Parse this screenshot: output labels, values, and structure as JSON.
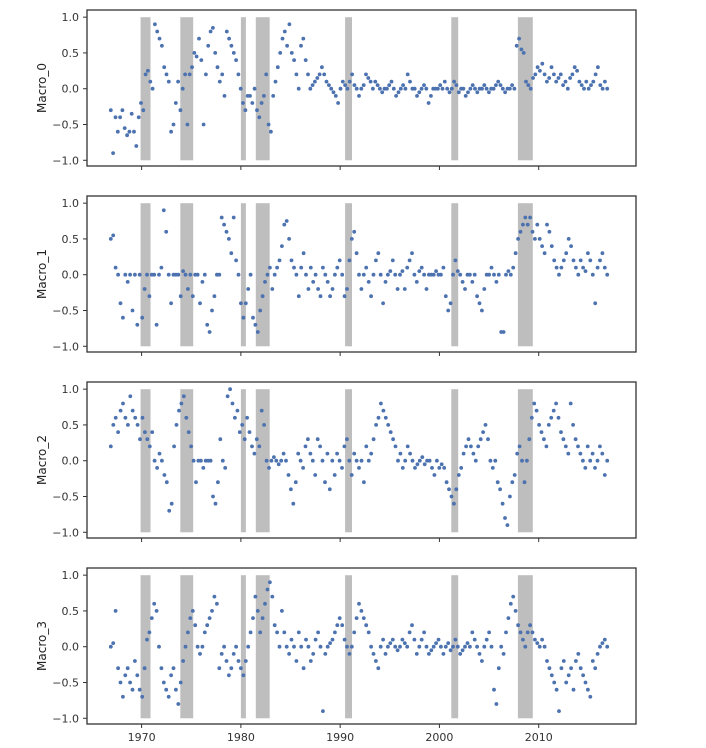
{
  "chart_data": {
    "type": "scatter",
    "x_ticks": [
      1970,
      1980,
      1990,
      2000,
      2010
    ],
    "y_ticks": [
      -1.0,
      -0.5,
      0.0,
      0.5,
      1.0
    ],
    "y_tick_labels": [
      "−1.0",
      "−0.5",
      "0.0",
      "0.5",
      "1.0"
    ],
    "xlim": [
      1964.5,
      2019.8
    ],
    "ylim": [
      -1.08,
      1.1
    ],
    "grid": false,
    "legend": "none",
    "colors": {
      "points": "#4c72b0",
      "recession": "#bebebe",
      "frame": "#333333"
    },
    "shaded_periods": [
      [
        1969.9,
        1970.9
      ],
      [
        1973.9,
        1975.2
      ],
      [
        1980.0,
        1980.5
      ],
      [
        1981.5,
        1982.9
      ],
      [
        1990.5,
        1991.2
      ],
      [
        2001.2,
        2001.9
      ],
      [
        2007.9,
        2009.4
      ]
    ],
    "panels": [
      {
        "ylabel": "Macro_0",
        "series": [
          {
            "values": [
              -0.3,
              -0.9,
              -0.4,
              -0.6,
              -0.4,
              -0.3,
              -0.55,
              -0.65,
              -0.6,
              -0.35,
              -0.6,
              -0.8,
              -0.4,
              -0.2,
              -0.3,
              0.2,
              0.25,
              0.1,
              0.0,
              0.9,
              0.8,
              0.7,
              0.6,
              0.3,
              0.2,
              0.1,
              -0.6,
              -0.5,
              -0.2,
              0.1,
              -0.3,
              0.0,
              0.2,
              -0.5,
              0.2,
              0.3,
              0.5,
              0.45,
              0.7,
              0.4,
              -0.5,
              0.2,
              0.6,
              0.8,
              0.85,
              0.5,
              0.3,
              0.1,
              0.2,
              -0.1,
              0.8,
              0.7,
              0.6,
              0.5,
              0.4,
              0.2,
              0.0,
              -0.2,
              -0.3,
              -0.1,
              -0.1,
              -0.2,
              0.0,
              -0.3,
              -0.4,
              -0.2,
              -0.1,
              0.2,
              -0.5,
              -0.6,
              -0.1,
              0.1,
              0.3,
              0.5,
              0.7,
              0.8,
              0.6,
              0.9,
              0.5,
              0.4,
              0.2,
              0.0,
              0.6,
              0.7,
              0.4,
              0.2,
              0.0,
              0.05,
              0.1,
              0.15,
              0.2,
              0.3,
              0.2,
              0.1,
              0.05,
              0.0,
              -0.05,
              -0.1,
              -0.2,
              0.0,
              0.1,
              0.05,
              0.0,
              0.1,
              0.2,
              0.05,
              0.0,
              -0.1,
              0.0,
              0.05,
              0.2,
              0.15,
              0.1,
              0.0,
              0.1,
              0.05,
              0.0,
              -0.05,
              0.0,
              0.0,
              0.05,
              0.1,
              0.0,
              -0.1,
              -0.05,
              0.0,
              0.05,
              0.0,
              0.2,
              0.1,
              0.0,
              0.0,
              -0.1,
              -0.05,
              0.0,
              0.05,
              0.0,
              -0.2,
              -0.1,
              0.0,
              0.0,
              0.0,
              0.05,
              0.0,
              0.1,
              0.0,
              -0.05,
              0.0,
              0.1,
              0.05,
              -0.05,
              0.0,
              0.0,
              -0.1,
              -0.05,
              0.0,
              0.05,
              0.0,
              -0.05,
              0.0,
              0.0,
              0.05,
              0.0,
              -0.05,
              0.0,
              0.0,
              0.05,
              0.1,
              0.05,
              0.0,
              -0.05,
              0.0,
              0.0,
              0.05,
              0.0,
              0.6,
              0.7,
              0.55,
              0.5,
              0.1,
              0.05,
              0.0,
              0.15,
              0.2,
              0.3,
              0.25,
              0.35,
              0.2,
              0.1,
              0.15,
              0.3,
              0.2,
              0.1,
              0.15,
              0.2,
              0.05,
              0.1,
              0.0,
              0.15,
              0.2,
              0.3,
              0.25,
              0.1,
              0.05,
              0.0,
              0.1,
              0.0,
              0.05,
              0.1,
              0.2,
              0.3,
              0.05,
              0.0,
              0.1,
              0.0
            ]
          }
        ]
      },
      {
        "ylabel": "Macro_1",
        "series": [
          {
            "values": [
              0.5,
              0.55,
              0.1,
              0.0,
              -0.4,
              -0.6,
              0.0,
              -0.1,
              0.0,
              -0.5,
              0.0,
              -0.7,
              0.0,
              -0.6,
              -0.2,
              0.0,
              -0.3,
              0.0,
              0.0,
              -0.7,
              0.0,
              0.1,
              0.9,
              0.6,
              0.0,
              -0.4,
              0.0,
              0.0,
              0.0,
              -0.3,
              0.05,
              0.0,
              -0.2,
              0.0,
              -0.3,
              0.0,
              0.0,
              -0.4,
              -0.1,
              0.0,
              -0.7,
              -0.8,
              -0.5,
              -0.3,
              0.0,
              0.0,
              0.8,
              0.7,
              0.6,
              0.5,
              0.3,
              0.8,
              0.2,
              0.0,
              -0.4,
              -0.6,
              -0.4,
              -0.2,
              0.0,
              -0.6,
              -0.7,
              -0.8,
              -0.5,
              -0.3,
              -0.1,
              0.0,
              0.1,
              -0.2,
              0.0,
              0.1,
              0.2,
              0.4,
              0.7,
              0.75,
              0.5,
              0.2,
              0.1,
              0.0,
              -0.3,
              0.1,
              0.3,
              0.0,
              -0.2,
              0.1,
              -0.1,
              0.0,
              -0.2,
              -0.3,
              0.1,
              0.0,
              -0.1,
              -0.3,
              -0.2,
              0.0,
              0.1,
              0.2,
              0.0,
              -0.3,
              -0.2,
              0.2,
              0.5,
              0.6,
              0.3,
              0.0,
              -0.2,
              0.0,
              0.1,
              -0.1,
              -0.3,
              0.0,
              0.2,
              0.3,
              0.0,
              -0.4,
              -0.1,
              0.0,
              0.05,
              0.2,
              0.0,
              -0.2,
              0.0,
              0.05,
              -0.2,
              0.1,
              0.2,
              0.3,
              0.0,
              -0.1,
              0.05,
              0.1,
              0.0,
              -0.2,
              0.0,
              0.0,
              0.0,
              0.05,
              0.0,
              0.0,
              0.1,
              -0.3,
              -0.5,
              -0.4,
              0.0,
              0.2,
              0.05,
              0.0,
              -0.1,
              -0.2,
              0.0,
              0.0,
              -0.1,
              0.0,
              -0.3,
              -0.4,
              -0.5,
              -0.2,
              0.0,
              0.0,
              0.1,
              0.0,
              -0.1,
              0.0,
              -0.8,
              -0.8,
              0.0,
              0.05,
              0.0,
              0.1,
              0.3,
              0.5,
              0.6,
              0.7,
              0.8,
              0.7,
              0.8,
              0.6,
              0.5,
              0.7,
              0.5,
              0.4,
              0.3,
              0.7,
              0.6,
              0.4,
              0.2,
              0.1,
              0.0,
              0.1,
              0.2,
              0.3,
              0.5,
              0.4,
              0.2,
              0.1,
              0.0,
              0.2,
              0.1,
              0.05,
              0.3,
              0.2,
              0.0,
              -0.4,
              0.1,
              0.2,
              0.3,
              0.1,
              0.0
            ]
          }
        ]
      },
      {
        "ylabel": "Macro_2",
        "series": [
          {
            "values": [
              0.2,
              0.5,
              0.6,
              0.4,
              0.7,
              0.8,
              0.6,
              0.5,
              0.9,
              0.7,
              0.6,
              0.5,
              0.3,
              0.6,
              0.4,
              0.3,
              0.2,
              0.4,
              0.0,
              -0.1,
              0.1,
              0.0,
              -0.2,
              -0.3,
              -0.7,
              -0.6,
              0.2,
              0.5,
              0.7,
              0.8,
              0.9,
              0.6,
              0.4,
              0.2,
              0.0,
              -0.3,
              0.0,
              0.0,
              -0.1,
              0.0,
              0.0,
              0.0,
              -0.5,
              -0.6,
              -0.3,
              0.3,
              0.0,
              -0.1,
              0.9,
              1.0,
              0.8,
              0.6,
              0.7,
              0.4,
              0.5,
              0.3,
              0.6,
              0.4,
              0.2,
              0.1,
              0.3,
              0.2,
              0.7,
              0.5,
              0.0,
              -0.1,
              0.0,
              0.05,
              0.0,
              -0.05,
              0.0,
              0.1,
              0.0,
              -0.2,
              -0.4,
              -0.6,
              -0.3,
              0.1,
              0.0,
              -0.1,
              0.2,
              0.3,
              0.1,
              0.0,
              -0.2,
              0.3,
              0.2,
              0.0,
              -0.3,
              0.1,
              -0.4,
              0.0,
              -0.2,
              0.1,
              0.0,
              -0.1,
              0.2,
              0.3,
              0.0,
              -0.2,
              0.1,
              0.0,
              -0.1,
              0.0,
              -0.3,
              0.2,
              0.0,
              0.1,
              0.3,
              0.5,
              0.6,
              0.8,
              0.7,
              0.6,
              0.5,
              0.4,
              0.3,
              0.2,
              0.0,
              0.1,
              -0.1,
              0.0,
              0.2,
              0.1,
              0.0,
              -0.1,
              -0.05,
              0.0,
              0.05,
              -0.05,
              0.0,
              0.0,
              -0.1,
              -0.2,
              0.0,
              -0.1,
              -0.05,
              -0.1,
              -0.3,
              -0.4,
              -0.5,
              -0.6,
              -0.4,
              -0.2,
              -0.1,
              0.1,
              0.2,
              0.3,
              0.2,
              0.1,
              0.0,
              0.2,
              0.3,
              0.4,
              0.5,
              0.3,
              0.0,
              -0.1,
              0.0,
              -0.3,
              -0.4,
              -0.6,
              -0.8,
              -0.9,
              -0.5,
              -0.3,
              -0.2,
              0.1,
              0.2,
              0.0,
              -0.3,
              0.0,
              0.3,
              0.6,
              0.8,
              0.7,
              0.5,
              0.4,
              0.3,
              0.2,
              0.5,
              0.6,
              0.7,
              0.8,
              0.6,
              0.4,
              0.3,
              0.2,
              0.1,
              0.8,
              0.5,
              0.3,
              0.2,
              0.1,
              0.0,
              -0.1,
              0.2,
              0.0,
              0.1,
              -0.1,
              0.0,
              0.2,
              0.1,
              -0.2,
              0.0
            ]
          }
        ]
      },
      {
        "ylabel": "Macro_3",
        "series": [
          {
            "values": [
              0.0,
              0.05,
              0.5,
              -0.3,
              -0.5,
              -0.7,
              -0.4,
              -0.3,
              -0.5,
              -0.6,
              -0.2,
              -0.4,
              -0.6,
              -0.7,
              -0.3,
              0.1,
              0.2,
              0.4,
              0.6,
              0.5,
              0.0,
              -0.3,
              -0.5,
              -0.6,
              -0.7,
              -0.4,
              -0.3,
              -0.6,
              -0.8,
              -0.5,
              -0.2,
              0.0,
              0.2,
              0.4,
              0.5,
              0.3,
              0.0,
              -0.1,
              0.0,
              0.2,
              0.3,
              0.4,
              0.5,
              0.7,
              0.6,
              -0.3,
              -0.1,
              0.0,
              -0.2,
              -0.4,
              -0.3,
              -0.1,
              0.0,
              -0.2,
              -0.3,
              -0.4,
              -0.2,
              0.0,
              0.2,
              0.4,
              0.7,
              0.5,
              0.2,
              0.4,
              0.6,
              0.8,
              0.9,
              0.7,
              0.3,
              0.2,
              0.0,
              0.5,
              0.2,
              0.0,
              -0.1,
              0.1,
              0.0,
              -0.2,
              0.2,
              0.0,
              -0.3,
              0.1,
              0.0,
              -0.2,
              -0.1,
              0.1,
              0.2,
              0.0,
              -0.9,
              -0.1,
              0.0,
              0.05,
              0.1,
              0.2,
              0.3,
              0.4,
              0.3,
              0.1,
              0.0,
              -0.1,
              0.0,
              0.2,
              0.4,
              0.6,
              0.5,
              0.4,
              0.3,
              0.2,
              0.0,
              -0.1,
              -0.2,
              -0.3,
              0.0,
              0.1,
              -0.1,
              0.0,
              0.05,
              0.1,
              0.0,
              -0.05,
              0.0,
              0.1,
              0.05,
              0.0,
              0.2,
              0.3,
              0.1,
              -0.1,
              0.0,
              0.1,
              0.2,
              0.0,
              -0.1,
              -0.05,
              0.0,
              0.05,
              0.1,
              0.0,
              -0.1,
              0.0,
              0.05,
              -0.05,
              0.0,
              0.1,
              0.0,
              -0.1,
              -0.05,
              0.0,
              0.05,
              0.0,
              0.2,
              0.1,
              0.0,
              -0.1,
              -0.2,
              0.0,
              0.1,
              0.2,
              0.0,
              -0.6,
              -0.8,
              -0.3,
              0.0,
              -0.1,
              0.2,
              0.4,
              0.6,
              0.7,
              0.5,
              0.3,
              0.2,
              0.1,
              0.0,
              0.2,
              0.3,
              0.2,
              0.1,
              0.05,
              0.0,
              0.1,
              0.0,
              -0.2,
              -0.3,
              -0.4,
              -0.5,
              -0.6,
              -0.9,
              -0.3,
              -0.2,
              -0.5,
              -0.4,
              -0.3,
              -0.6,
              -0.2,
              -0.1,
              -0.3,
              -0.4,
              -0.5,
              -0.6,
              -0.7,
              -0.2,
              -0.3,
              -0.1,
              0.0,
              0.05,
              0.1,
              0.0
            ]
          }
        ]
      }
    ]
  }
}
